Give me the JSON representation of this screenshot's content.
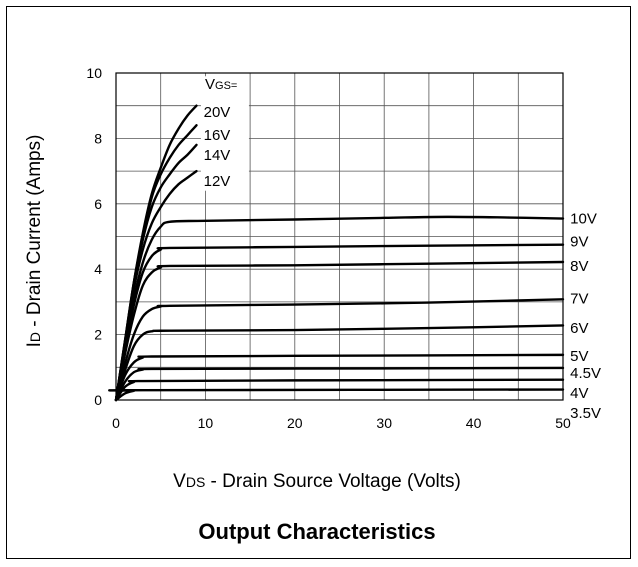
{
  "chart_data": {
    "type": "line",
    "title": "Output Characteristics",
    "xlabel": "VDS - Drain Source Voltage (Volts)",
    "xlabel_parts": {
      "sym": "V",
      "sub": "DS",
      "rest": " - Drain Source Voltage (Volts)"
    },
    "ylabel": "ID - Drain Current (Amps)",
    "ylabel_parts": {
      "sym": "I",
      "sub": "D",
      "rest": " - Drain Current (Amps)"
    },
    "legend_header": "VGS=",
    "legend_header_parts": {
      "sym": "V",
      "sub": "GS="
    },
    "xlim": [
      0,
      50
    ],
    "ylim": [
      0,
      10
    ],
    "xticks": [
      0,
      10,
      20,
      30,
      40,
      50
    ],
    "yticks": [
      0,
      2,
      4,
      6,
      8,
      10
    ],
    "grid": true,
    "series": [
      {
        "name": "20V",
        "values": [
          [
            0,
            0
          ],
          [
            1,
            1.8
          ],
          [
            2,
            3.6
          ],
          [
            3,
            5.1
          ],
          [
            4,
            6.3
          ],
          [
            5,
            7.1
          ],
          [
            6,
            7.8
          ],
          [
            7,
            8.3
          ],
          [
            8,
            8.7
          ],
          [
            9,
            9.0
          ]
        ]
      },
      {
        "name": "16V",
        "values": [
          [
            0,
            0
          ],
          [
            1,
            1.8
          ],
          [
            2,
            3.6
          ],
          [
            3,
            5.0
          ],
          [
            4,
            6.2
          ],
          [
            5,
            6.9
          ],
          [
            6,
            7.4
          ],
          [
            7,
            7.8
          ],
          [
            8,
            8.1
          ],
          [
            9,
            8.4
          ]
        ]
      },
      {
        "name": "14V",
        "values": [
          [
            0,
            0
          ],
          [
            1,
            1.75
          ],
          [
            2,
            3.5
          ],
          [
            3,
            4.9
          ],
          [
            4,
            5.9
          ],
          [
            5,
            6.5
          ],
          [
            6,
            6.9
          ],
          [
            7,
            7.25
          ],
          [
            8,
            7.5
          ],
          [
            9,
            7.8
          ]
        ]
      },
      {
        "name": "12V",
        "values": [
          [
            0,
            0
          ],
          [
            1,
            1.7
          ],
          [
            2,
            3.4
          ],
          [
            3,
            4.6
          ],
          [
            4,
            5.4
          ],
          [
            5,
            5.9
          ],
          [
            6,
            6.3
          ],
          [
            7,
            6.6
          ],
          [
            8,
            6.8
          ],
          [
            9,
            7.0
          ]
        ]
      },
      {
        "name": "10V",
        "values": [
          [
            0,
            0
          ],
          [
            1,
            1.6
          ],
          [
            2,
            3.1
          ],
          [
            3,
            4.2
          ],
          [
            4,
            4.9
          ],
          [
            5,
            5.3
          ],
          [
            6,
            5.45
          ],
          [
            10,
            5.48
          ],
          [
            20,
            5.52
          ],
          [
            30,
            5.57
          ],
          [
            37,
            5.6
          ],
          [
            44,
            5.58
          ],
          [
            50,
            5.55
          ]
        ]
      },
      {
        "name": "9V",
        "values": [
          [
            0,
            0
          ],
          [
            1,
            1.5
          ],
          [
            2,
            2.9
          ],
          [
            3,
            3.9
          ],
          [
            4,
            4.4
          ],
          [
            5,
            4.6
          ],
          [
            6,
            4.65
          ],
          [
            20,
            4.68
          ],
          [
            35,
            4.72
          ],
          [
            50,
            4.75
          ]
        ]
      },
      {
        "name": "8V",
        "values": [
          [
            0,
            0
          ],
          [
            1,
            1.4
          ],
          [
            2,
            2.6
          ],
          [
            3,
            3.5
          ],
          [
            4,
            3.9
          ],
          [
            5,
            4.05
          ],
          [
            6,
            4.1
          ],
          [
            20,
            4.12
          ],
          [
            35,
            4.17
          ],
          [
            50,
            4.22
          ]
        ]
      },
      {
        "name": "7V",
        "values": [
          [
            0,
            0
          ],
          [
            1,
            1.1
          ],
          [
            2,
            2.0
          ],
          [
            3,
            2.55
          ],
          [
            4,
            2.78
          ],
          [
            5,
            2.86
          ],
          [
            6,
            2.88
          ],
          [
            20,
            2.92
          ],
          [
            35,
            2.98
          ],
          [
            50,
            3.08
          ]
        ]
      },
      {
        "name": "6V",
        "values": [
          [
            0,
            0
          ],
          [
            1,
            0.9
          ],
          [
            2,
            1.65
          ],
          [
            3,
            2.0
          ],
          [
            4,
            2.1
          ],
          [
            6,
            2.12
          ],
          [
            20,
            2.14
          ],
          [
            35,
            2.2
          ],
          [
            50,
            2.28
          ]
        ]
      },
      {
        "name": "5V",
        "values": [
          [
            0,
            0
          ],
          [
            1,
            0.75
          ],
          [
            2,
            1.15
          ],
          [
            3,
            1.3
          ],
          [
            4,
            1.33
          ],
          [
            20,
            1.35
          ],
          [
            50,
            1.38
          ]
        ]
      },
      {
        "name": "4.5V",
        "values": [
          [
            0,
            0
          ],
          [
            1,
            0.55
          ],
          [
            2,
            0.85
          ],
          [
            3,
            0.93
          ],
          [
            4,
            0.95
          ],
          [
            20,
            0.96
          ],
          [
            50,
            0.98
          ]
        ]
      },
      {
        "name": "4V",
        "values": [
          [
            0,
            0
          ],
          [
            1,
            0.4
          ],
          [
            2,
            0.55
          ],
          [
            3,
            0.58
          ],
          [
            20,
            0.6
          ],
          [
            50,
            0.62
          ]
        ]
      },
      {
        "name": "3.5V",
        "values": [
          [
            0,
            0
          ],
          [
            1,
            0.2
          ],
          [
            2,
            0.28
          ],
          [
            3,
            0.3
          ],
          [
            50,
            0.32
          ]
        ]
      }
    ],
    "series_labels": [
      {
        "name": "20V",
        "at": [
          9.8,
          8.8
        ]
      },
      {
        "name": "16V",
        "at": [
          9.8,
          8.1
        ]
      },
      {
        "name": "14V",
        "at": [
          9.8,
          7.5
        ]
      },
      {
        "name": "12V",
        "at": [
          9.8,
          6.7
        ]
      },
      {
        "name": "10V",
        "at": [
          50.8,
          5.55
        ]
      },
      {
        "name": "9V",
        "at": [
          50.8,
          4.85
        ]
      },
      {
        "name": "8V",
        "at": [
          50.8,
          4.1
        ]
      },
      {
        "name": "7V",
        "at": [
          50.8,
          3.1
        ]
      },
      {
        "name": "6V",
        "at": [
          50.8,
          2.2
        ]
      },
      {
        "name": "5V",
        "at": [
          50.8,
          1.35
        ]
      },
      {
        "name": "4.5V",
        "at": [
          50.8,
          0.82
        ]
      },
      {
        "name": "4V",
        "at": [
          50.8,
          0.22
        ]
      },
      {
        "name": "3.5V",
        "at": [
          50.8,
          -0.4
        ]
      }
    ]
  }
}
